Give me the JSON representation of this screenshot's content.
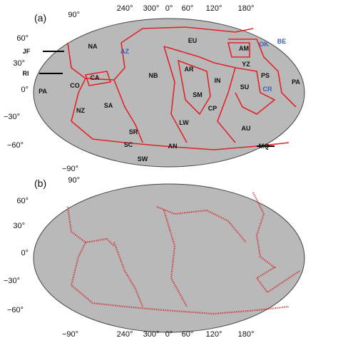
{
  "panels": [
    {
      "label": "(a)",
      "lon_labels": [
        "240°",
        "300°",
        "0°",
        "60°",
        "120°",
        "180°"
      ],
      "lat_labels": [
        "90°",
        "60°",
        "30°",
        "0°",
        "−30°",
        "−60°",
        "−90°"
      ],
      "plate_labels": [
        "NA",
        "EU",
        "AM",
        "OK",
        "BE",
        "AZ",
        "JF",
        "RI",
        "CA",
        "CO",
        "PA",
        "NB",
        "AR",
        "IN",
        "YZ",
        "PS",
        "SU",
        "CR",
        "PA",
        "SM",
        "CP",
        "NZ",
        "SA",
        "LW",
        "AU",
        "SR",
        "SC",
        "SW",
        "AN",
        "MQ"
      ]
    },
    {
      "label": "(b)",
      "lon_labels": [
        "240°",
        "300°",
        "0°",
        "60°",
        "120°",
        "180°"
      ],
      "lat_labels": [
        "90°",
        "60°",
        "30°",
        "0°",
        "−30°",
        "−60°",
        "−90°"
      ]
    }
  ]
}
